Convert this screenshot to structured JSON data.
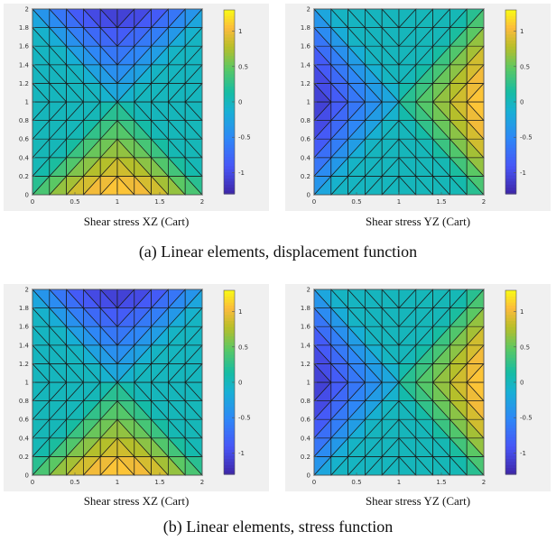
{
  "figure": {
    "caption_a": "(a) Linear elements, displacement function",
    "caption_b": "(b) Linear elements, stress function"
  },
  "chart_data": [
    {
      "id": "a-xz",
      "type": "heatmap",
      "title": "Shear stress XZ (Cart)",
      "field": "xz",
      "xlim": [
        0,
        2
      ],
      "ylim": [
        0,
        2
      ],
      "xticks": [
        "0",
        "0.5",
        "1",
        "1.5",
        "2"
      ],
      "yticks": [
        "0",
        "0.2",
        "0.4",
        "0.6",
        "0.8",
        "1",
        "1.2",
        "1.4",
        "1.6",
        "1.8",
        "2"
      ],
      "clim": [
        -1.3,
        1.3
      ],
      "colorbar_ticks": [
        "1",
        "0.5",
        "0",
        "-0.5",
        "-1"
      ],
      "colormap": "parula",
      "mesh": "linear triangular elements, 10 x 10 grid, diagonals toward center"
    },
    {
      "id": "a-yz",
      "type": "heatmap",
      "title": "Shear stress YZ (Cart)",
      "field": "yz",
      "xlim": [
        0,
        2
      ],
      "ylim": [
        0,
        2
      ],
      "xticks": [
        "0",
        "0.5",
        "1",
        "1.5",
        "2"
      ],
      "yticks": [
        "0",
        "0.2",
        "0.4",
        "0.6",
        "0.8",
        "1",
        "1.2",
        "1.4",
        "1.6",
        "1.8",
        "2"
      ],
      "clim": [
        -1.3,
        1.3
      ],
      "colorbar_ticks": [
        "1",
        "0.5",
        "0",
        "-0.5",
        "-1"
      ],
      "colormap": "parula",
      "mesh": "linear triangular elements, 10 x 10 grid, diagonals toward center"
    },
    {
      "id": "b-xz",
      "type": "heatmap",
      "title": "Shear stress XZ (Cart)",
      "field": "xz",
      "xlim": [
        0,
        2
      ],
      "ylim": [
        0,
        2
      ],
      "xticks": [
        "0",
        "0.5",
        "1",
        "1.5",
        "2"
      ],
      "yticks": [
        "0",
        "0.2",
        "0.4",
        "0.6",
        "0.8",
        "1",
        "1.2",
        "1.4",
        "1.6",
        "1.8",
        "2"
      ],
      "clim": [
        -1.3,
        1.3
      ],
      "colorbar_ticks": [
        "1",
        "0.5",
        "0",
        "-0.5",
        "-1"
      ],
      "colormap": "parula",
      "mesh": "linear triangular elements, 10 x 10 grid, diagonals toward center"
    },
    {
      "id": "b-yz",
      "type": "heatmap",
      "title": "Shear stress YZ (Cart)",
      "field": "yz",
      "xlim": [
        0,
        2
      ],
      "ylim": [
        0,
        2
      ],
      "xticks": [
        "0",
        "0.5",
        "1",
        "1.5",
        "2"
      ],
      "yticks": [
        "0",
        "0.2",
        "0.4",
        "0.6",
        "0.8",
        "1",
        "1.2",
        "1.4",
        "1.6",
        "1.8",
        "2"
      ],
      "clim": [
        -1.3,
        1.3
      ],
      "colorbar_ticks": [
        "1",
        "0.5",
        "0",
        "-0.5",
        "-1"
      ],
      "colormap": "parula",
      "mesh": "linear triangular elements, 10 x 10 grid, diagonals toward center"
    }
  ]
}
